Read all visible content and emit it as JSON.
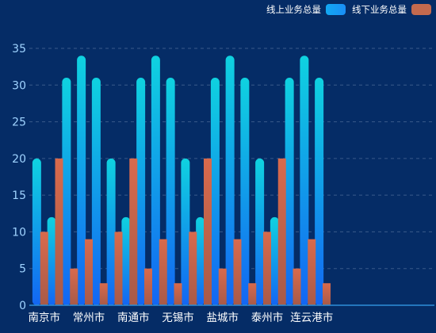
{
  "chart_data": {
    "type": "bar",
    "categories": [
      "南京市",
      "常州市",
      "南通市",
      "无锡市",
      "盐城市",
      "泰州市",
      "连云港市"
    ],
    "x_positions": [
      0.5,
      3.5,
      6.5,
      9.5,
      12.5,
      15.5,
      18.5
    ],
    "series": [
      {
        "name": "线上业务总量",
        "x": [
          0,
          1,
          2,
          3,
          4,
          5,
          6,
          7,
          8,
          9,
          10,
          11,
          12,
          13,
          14,
          15,
          16,
          17,
          18,
          19
        ],
        "values": [
          20,
          12,
          31,
          34,
          31,
          20,
          12,
          31,
          34,
          31,
          20,
          12,
          31,
          34,
          31,
          20,
          12,
          31,
          34,
          31
        ],
        "color": "#1a9cf0"
      },
      {
        "name": "线下业务总量",
        "x": [
          0.5,
          1.5,
          2.5,
          3.5,
          4.5,
          5.5,
          6.5,
          7.5,
          8.5,
          9.5,
          10.5,
          11.5,
          12.5,
          13.5,
          14.5,
          15.5,
          16.5,
          17.5,
          18.5,
          19.5
        ],
        "values": [
          10,
          20,
          5,
          9,
          3,
          10,
          20,
          5,
          9,
          3,
          10,
          20,
          5,
          9,
          3,
          10,
          20,
          5,
          9,
          3
        ],
        "color": "#c8694b"
      }
    ],
    "ylim": [
      0,
      35
    ],
    "yticks": [
      0,
      5,
      10,
      15,
      20,
      25,
      30,
      35
    ],
    "grid": true,
    "legend_position": "top-right"
  },
  "colors": {
    "background": "#052c66",
    "online_top": "#0fd2e0",
    "online_bottom": "#1366f3",
    "offline_top": "#d86a4c",
    "offline_bottom": "#a85a48",
    "axis_text": "#ffffff",
    "tick_text": "#9fd3ff",
    "grid": "#3a5a8a",
    "axis_line": "#2e8fd8"
  },
  "legend": {
    "online_label": "线上业务总量",
    "offline_label": "线下业务总量"
  }
}
